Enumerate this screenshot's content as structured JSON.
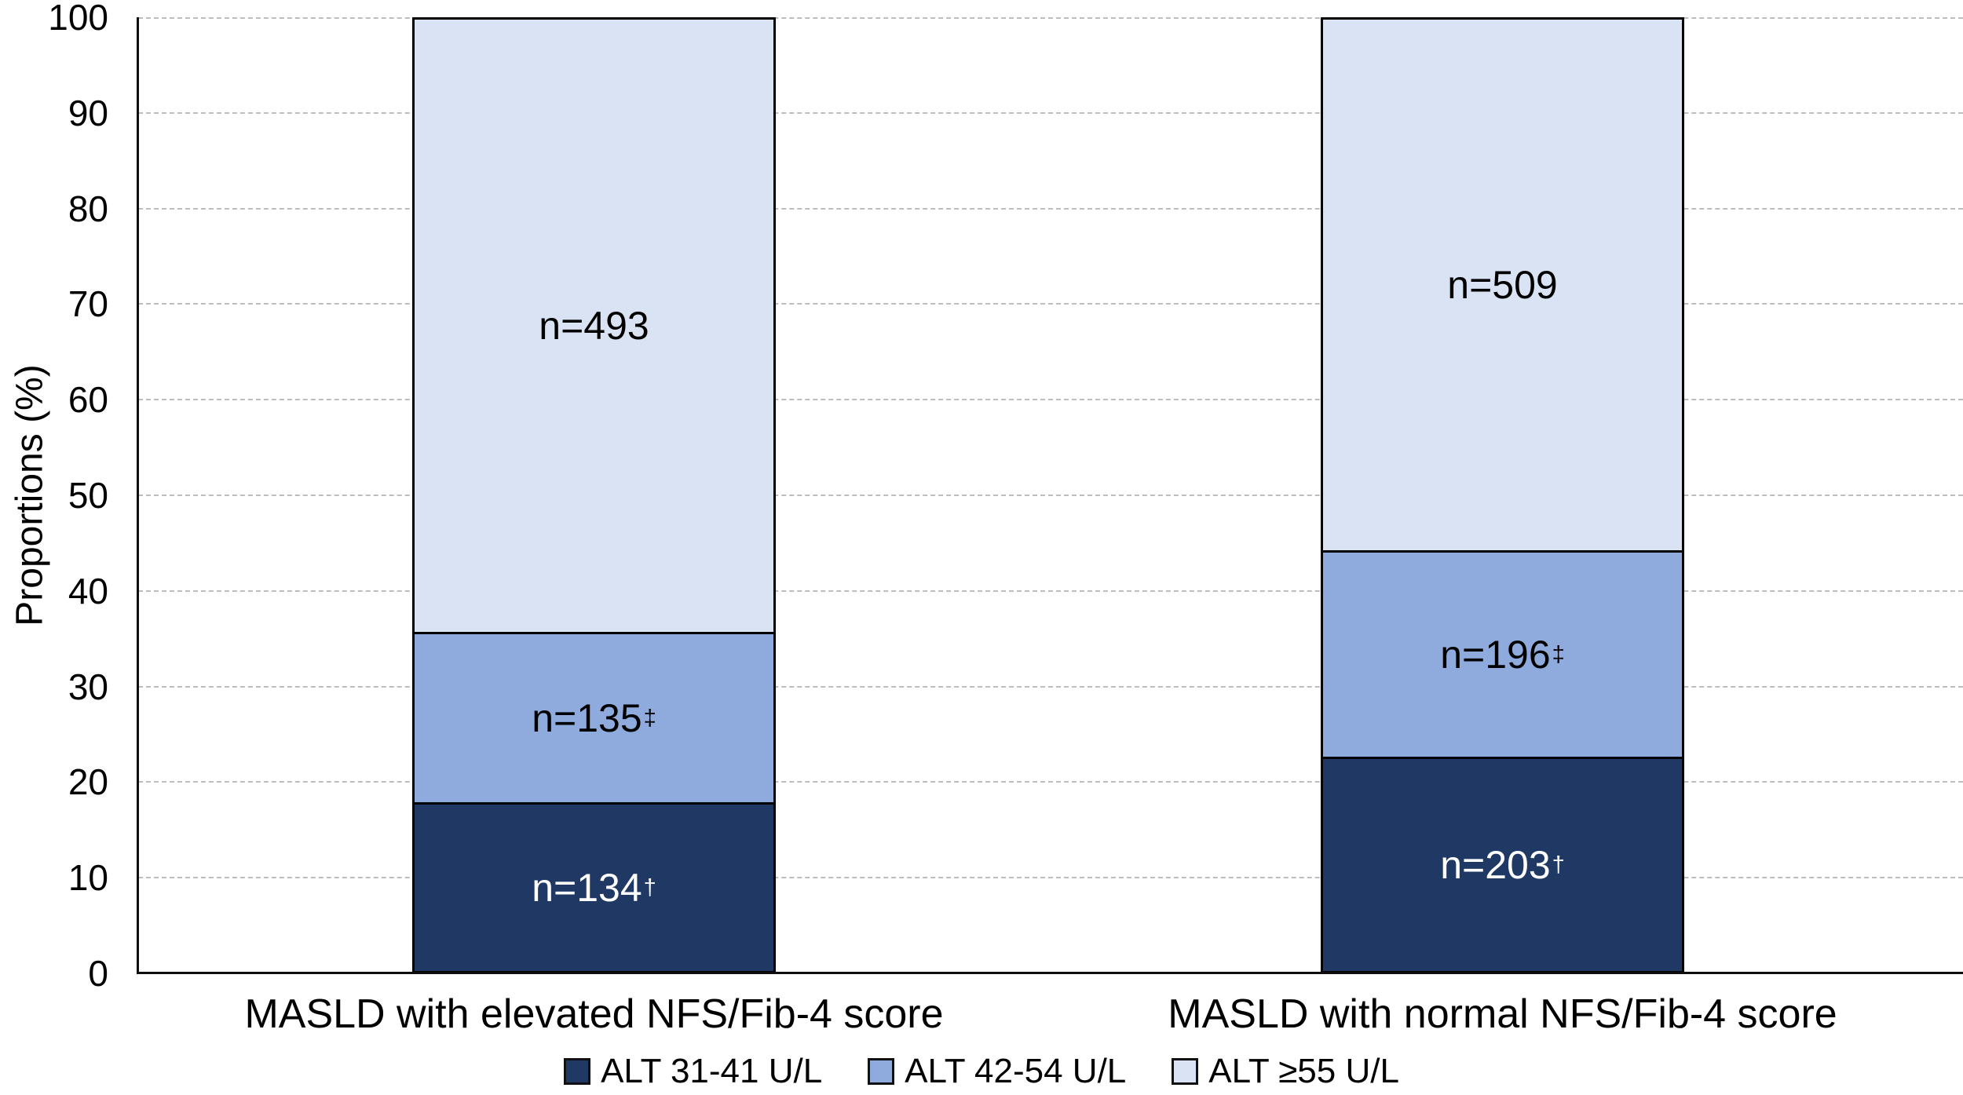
{
  "chart_data": {
    "type": "bar",
    "stacked": true,
    "orientation": "vertical",
    "title": "",
    "ylabel": "Proportions (%)",
    "xlabel": "",
    "ylim": [
      0,
      100
    ],
    "yticks": [
      0,
      10,
      20,
      30,
      40,
      50,
      60,
      70,
      80,
      90,
      100
    ],
    "grid": "horizontal-dashed",
    "legend_position": "bottom",
    "categories": [
      "MASLD with elevated NFS/Fib-4 score",
      "MASLD with normal NFS/Fib-4 score"
    ],
    "series": [
      {
        "name": "ALT 31-41 U/L",
        "color": "#1f3864",
        "text_color": "#ffffff",
        "values": [
          134,
          203
        ],
        "pct": [
          17.585,
          22.357
        ],
        "labels": [
          "n=134",
          "n=203"
        ],
        "label_sup": "†"
      },
      {
        "name": "ALT 42-54 U/L",
        "color": "#8faadc",
        "text_color": "#000000",
        "values": [
          135,
          196
        ],
        "pct": [
          17.717,
          21.586
        ],
        "labels": [
          "n=135",
          "n=196"
        ],
        "label_sup": "‡"
      },
      {
        "name": "ALT ≥55 U/L",
        "color": "#dae3f3",
        "text_color": "#000000",
        "values": [
          493,
          509
        ],
        "pct": [
          64.698,
          56.057
        ],
        "labels": [
          "n=493",
          "n=509"
        ],
        "label_sup": ""
      }
    ],
    "colors": {
      "axis": "#0d0d0d",
      "gridline": "#bdbdbd",
      "background": "#ffffff"
    }
  }
}
